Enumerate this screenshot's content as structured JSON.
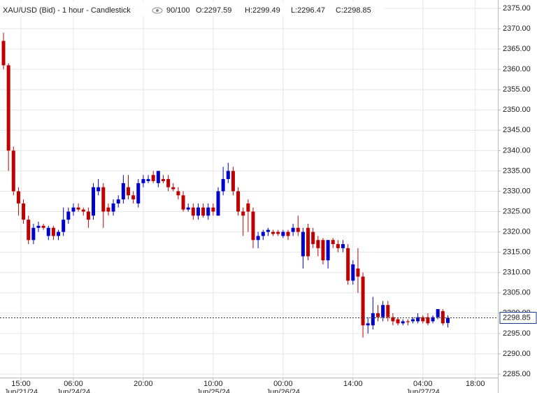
{
  "chart_data": {
    "type": "candlestick",
    "header": {
      "title": "XAU/USD (Bid) - 1 hour - Candlestick",
      "count": "90/100",
      "open": "O:2297.59",
      "high": "H:2299.49",
      "low": "L:2296.47",
      "close": "C:2298.85"
    },
    "up_color": "#0000cc",
    "down_color": "#c00000",
    "open": [
      2367,
      2361,
      2340,
      2330,
      2327,
      2323,
      2318,
      2321,
      2321.5,
      2319,
      2321,
      2319,
      2320,
      2323,
      2325,
      2326,
      2325.5,
      2325,
      2324,
      2330,
      2331,
      2326,
      2325,
      2327,
      2328,
      2331,
      2329,
      2327,
      2332,
      2332.5,
      2334,
      2332,
      2333,
      2333,
      2331,
      2330,
      2329,
      2325.5,
      2326,
      2324,
      2326,
      2324,
      2326,
      2324,
      2330,
      2333,
      2335,
      2330,
      2325,
      2327,
      2325,
      2318,
      2319,
      2320,
      2320,
      2320,
      2319,
      2320,
      2320,
      2321,
      2314,
      2321,
      2320,
      2318,
      2318,
      2313,
      2318,
      2317,
      2316,
      2316,
      2308,
      2311,
      2309,
      2297,
      2297,
      2300,
      2299,
      2302,
      2299,
      2298.5,
      2297.5,
      2298,
      2298,
      2298,
      2299,
      2299,
      2298,
      2299,
      2300.5,
      2297.59
    ],
    "high": [
      2369,
      2361.5,
      2341,
      2331,
      2328,
      2324,
      2322,
      2322.5,
      2322,
      2321.5,
      2321.5,
      2320.5,
      2326,
      2326,
      2327,
      2327,
      2326,
      2326,
      2332,
      2333,
      2332,
      2327,
      2328,
      2329,
      2334,
      2334,
      2330,
      2333,
      2334,
      2334,
      2335,
      2335,
      2334,
      2334,
      2332,
      2331,
      2330,
      2327,
      2327,
      2327,
      2327,
      2327,
      2327,
      2331,
      2336,
      2337,
      2336,
      2331,
      2326,
      2328,
      2326,
      2320,
      2320.5,
      2321,
      2320.5,
      2320.5,
      2320.5,
      2320.5,
      2322,
      2324,
      2321,
      2322,
      2321,
      2319,
      2318.5,
      2318,
      2318.5,
      2318,
      2318,
      2317,
      2313,
      2316,
      2310,
      2299,
      2304,
      2302,
      2303,
      2303,
      2300,
      2299,
      2298.5,
      2298.5,
      2299,
      2300,
      2299.5,
      2300,
      2299.5,
      2301,
      2301,
      2299.49
    ],
    "low": [
      2360,
      2335,
      2329,
      2324,
      2322,
      2317,
      2317,
      2320,
      2320.5,
      2318,
      2318,
      2318,
      2319,
      2322,
      2324,
      2325,
      2324,
      2321,
      2323,
      2329,
      2321,
      2324,
      2324,
      2326,
      2327,
      2328,
      2327,
      2326,
      2331,
      2332,
      2332,
      2331,
      2332,
      2330,
      2330,
      2328,
      2325,
      2325,
      2323,
      2323,
      2323.5,
      2323,
      2324,
      2324,
      2329,
      2332,
      2329,
      2324,
      2319,
      2320,
      2316,
      2316,
      2318,
      2319,
      2319,
      2319,
      2318.5,
      2318,
      2319,
      2319,
      2311,
      2313,
      2316,
      2314,
      2312,
      2311,
      2316,
      2315,
      2315,
      2307,
      2307,
      2305,
      2294,
      2295,
      2296,
      2298,
      2298,
      2298,
      2297,
      2297,
      2297,
      2297,
      2297.5,
      2297.5,
      2297.5,
      2297,
      2297.5,
      2298.5,
      2297,
      2296.47
    ],
    "close": [
      2361,
      2340,
      2330,
      2327,
      2323,
      2318,
      2321,
      2321.5,
      2321,
      2321,
      2319,
      2320,
      2323,
      2325,
      2326,
      2325.5,
      2325,
      2323,
      2331,
      2331,
      2325,
      2325,
      2327,
      2328,
      2332,
      2329,
      2328,
      2332,
      2333,
      2333,
      2332.5,
      2335,
      2332.5,
      2331,
      2330.5,
      2329,
      2325.5,
      2326,
      2324,
      2326,
      2324,
      2326,
      2325,
      2330,
      2333,
      2335,
      2330,
      2325,
      2324,
      2325,
      2318,
      2319,
      2320,
      2320.5,
      2319.5,
      2319.5,
      2320,
      2319,
      2321,
      2320,
      2320,
      2314,
      2317,
      2316,
      2313,
      2318,
      2317,
      2316,
      2317,
      2308,
      2312,
      2309,
      2297,
      2297.5,
      2300,
      2299,
      2302,
      2299,
      2298,
      2297.5,
      2298,
      2297.8,
      2298.5,
      2299,
      2298,
      2297.5,
      2299,
      2301,
      2297.5,
      2298.85
    ],
    "last_price": 2298.85,
    "xticks": [
      {
        "value": 3.5,
        "label": "15:00",
        "date": "Jun/21/24"
      },
      {
        "value": 14,
        "label": "06:00",
        "date": "Jun/24/24"
      },
      {
        "value": 28,
        "label": "20:00"
      },
      {
        "value": 42,
        "label": "10:00",
        "date": "Jun/25/24"
      },
      {
        "value": 56,
        "label": "00:00",
        "date": "Jun/26/24"
      },
      {
        "value": 70,
        "label": "14:00"
      },
      {
        "value": 84,
        "label": "04:00",
        "date": "Jun/27/24"
      },
      {
        "value": 94.5,
        "label": "18:00"
      }
    ],
    "ylim": [
      2285,
      2375
    ],
    "yticks": [
      {
        "value": 2285,
        "label": "2285.00"
      },
      {
        "value": 2290,
        "label": "2290.00"
      },
      {
        "value": 2295,
        "label": "2295.00"
      },
      {
        "value": 2300,
        "label": "2300.00"
      },
      {
        "value": 2305,
        "label": "2305.00"
      },
      {
        "value": 2310,
        "label": "2310.00"
      },
      {
        "value": 2315,
        "label": "2315.00"
      },
      {
        "value": 2320,
        "label": "2320.00"
      },
      {
        "value": 2325,
        "label": "2325.00"
      },
      {
        "value": 2330,
        "label": "2330.00"
      },
      {
        "value": 2335,
        "label": "2335.00"
      },
      {
        "value": 2340,
        "label": "2340.00"
      },
      {
        "value": 2345,
        "label": "2345.00"
      },
      {
        "value": 2350,
        "label": "2350.00"
      },
      {
        "value": 2355,
        "label": "2355.00"
      },
      {
        "value": 2360,
        "label": "2360.00"
      },
      {
        "value": 2365,
        "label": "2365.00"
      },
      {
        "value": 2370,
        "label": "2370.00"
      },
      {
        "value": 2375,
        "label": "2375.00"
      }
    ],
    "grid": true
  }
}
